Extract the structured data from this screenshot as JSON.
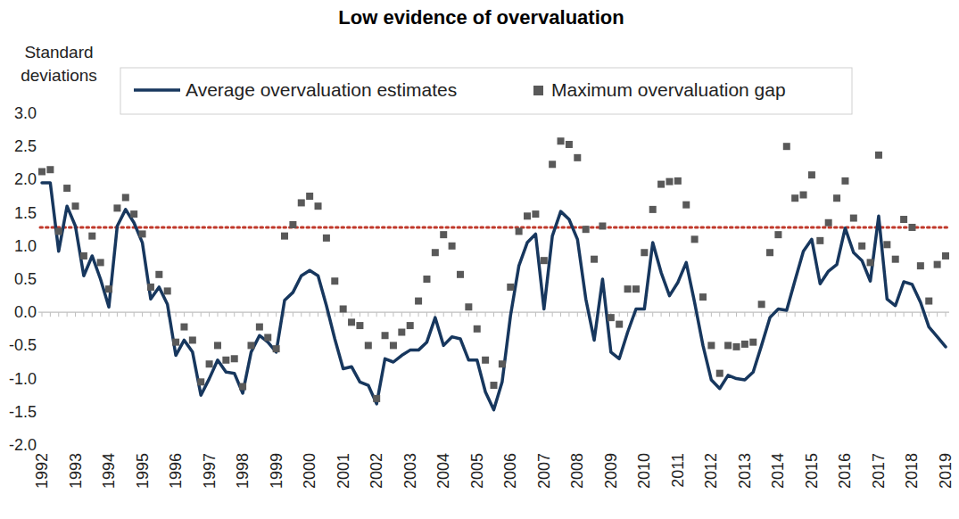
{
  "chart_data": {
    "type": "line",
    "title": "Low evidence of overvaluation",
    "y_label": "Standard deviations",
    "categories": [
      "1992",
      null,
      null,
      null,
      "1993",
      null,
      null,
      null,
      "1994",
      null,
      null,
      null,
      "1995",
      null,
      null,
      null,
      "1996",
      null,
      null,
      null,
      "1997",
      null,
      null,
      null,
      "1998",
      null,
      null,
      null,
      "1999",
      null,
      null,
      null,
      "2000",
      null,
      null,
      null,
      "2001",
      null,
      null,
      null,
      "2002",
      null,
      null,
      null,
      "2003",
      null,
      null,
      null,
      "2004",
      null,
      null,
      null,
      "2005",
      null,
      null,
      null,
      "2006",
      null,
      null,
      null,
      "2007",
      null,
      null,
      null,
      "2008",
      null,
      null,
      null,
      "2009",
      null,
      null,
      null,
      "2010",
      null,
      null,
      null,
      "2011",
      null,
      null,
      null,
      "2012",
      null,
      null,
      null,
      "2013",
      null,
      null,
      null,
      "2014",
      null,
      null,
      null,
      "2015",
      null,
      null,
      null,
      "2016",
      null,
      null,
      null,
      "2017",
      null,
      null,
      null,
      "2018",
      null,
      null,
      null,
      "2019"
    ],
    "series": [
      {
        "name": "Average overvaluation estimates",
        "type": "line",
        "color": "#17375e",
        "values": [
          1.95,
          1.95,
          0.92,
          1.6,
          1.3,
          0.55,
          0.85,
          0.5,
          0.08,
          1.3,
          1.55,
          1.35,
          1.05,
          0.2,
          0.38,
          0.12,
          -0.65,
          -0.42,
          -0.6,
          -1.25,
          -1.0,
          -0.72,
          -0.9,
          -0.92,
          -1.22,
          -0.6,
          -0.35,
          -0.45,
          -0.6,
          0.18,
          0.3,
          0.55,
          0.63,
          0.55,
          0.1,
          -0.4,
          -0.85,
          -0.82,
          -1.05,
          -1.1,
          -1.38,
          -0.7,
          -0.75,
          -0.65,
          -0.57,
          -0.57,
          -0.45,
          -0.08,
          -0.5,
          -0.37,
          -0.4,
          -0.72,
          -0.72,
          -1.2,
          -1.47,
          -1.05,
          -0.05,
          0.7,
          1.05,
          1.18,
          0.05,
          1.15,
          1.52,
          1.4,
          1.1,
          0.2,
          -0.42,
          0.5,
          -0.6,
          -0.7,
          -0.3,
          0.05,
          0.05,
          1.05,
          0.6,
          0.25,
          0.45,
          0.75,
          0.15,
          -0.5,
          -1.02,
          -1.15,
          -0.95,
          -1.0,
          -1.02,
          -0.9,
          -0.5,
          -0.08,
          0.05,
          0.03,
          0.48,
          0.92,
          1.1,
          0.43,
          0.62,
          0.72,
          1.27,
          0.9,
          0.78,
          0.47,
          1.45,
          0.2,
          0.1,
          0.46,
          0.42,
          0.15,
          -0.22,
          -0.37,
          -0.52
        ]
      },
      {
        "name": "Maximum overvaluation gap",
        "type": "scatter",
        "marker": "square",
        "color": "#595959",
        "values": [
          2.12,
          2.15,
          1.22,
          1.87,
          1.6,
          0.85,
          1.15,
          0.75,
          0.35,
          1.57,
          1.73,
          1.48,
          1.18,
          0.38,
          0.57,
          0.32,
          -0.45,
          -0.22,
          -0.42,
          -1.05,
          -0.78,
          -0.5,
          -0.72,
          -0.7,
          -1.12,
          -0.5,
          -0.22,
          -0.38,
          -0.55,
          1.15,
          1.32,
          1.65,
          1.75,
          1.6,
          1.12,
          0.47,
          0.05,
          -0.15,
          -0.2,
          -0.5,
          -1.3,
          -0.35,
          -0.5,
          -0.3,
          -0.2,
          0.17,
          0.5,
          0.9,
          1.17,
          1.0,
          0.57,
          0.08,
          -0.25,
          -0.72,
          -1.1,
          -0.78,
          0.38,
          1.22,
          1.45,
          1.48,
          0.78,
          2.23,
          2.58,
          2.53,
          2.33,
          1.25,
          0.8,
          1.3,
          -0.08,
          -0.18,
          0.35,
          0.35,
          0.9,
          1.55,
          1.93,
          1.97,
          1.98,
          1.62,
          1.1,
          0.23,
          -0.5,
          -0.92,
          -0.5,
          -0.52,
          -0.48,
          -0.45,
          0.12,
          0.9,
          1.17,
          2.5,
          1.72,
          1.77,
          2.07,
          1.08,
          1.35,
          1.72,
          1.98,
          1.42,
          1.0,
          0.75,
          2.37,
          1.02,
          0.8,
          1.4,
          1.28,
          0.7,
          0.17,
          0.72,
          0.85
        ]
      }
    ],
    "threshold": {
      "value": 1.28,
      "color": "#c0392b",
      "line_style": "dotted"
    },
    "ylim": [
      -2,
      3
    ],
    "yticks": [
      {
        "value": -2,
        "label": "-2.0"
      },
      -1.5,
      {
        "value": -1,
        "label": "-1.0"
      },
      -0.5,
      {
        "value": 0,
        "label": "0.0"
      },
      0.5,
      {
        "value": 1,
        "label": "1.0"
      },
      1.5,
      {
        "value": 2,
        "label": "2.0"
      },
      2.5,
      {
        "value": 3,
        "label": "3.0"
      }
    ],
    "grid": false,
    "legend": "top"
  }
}
